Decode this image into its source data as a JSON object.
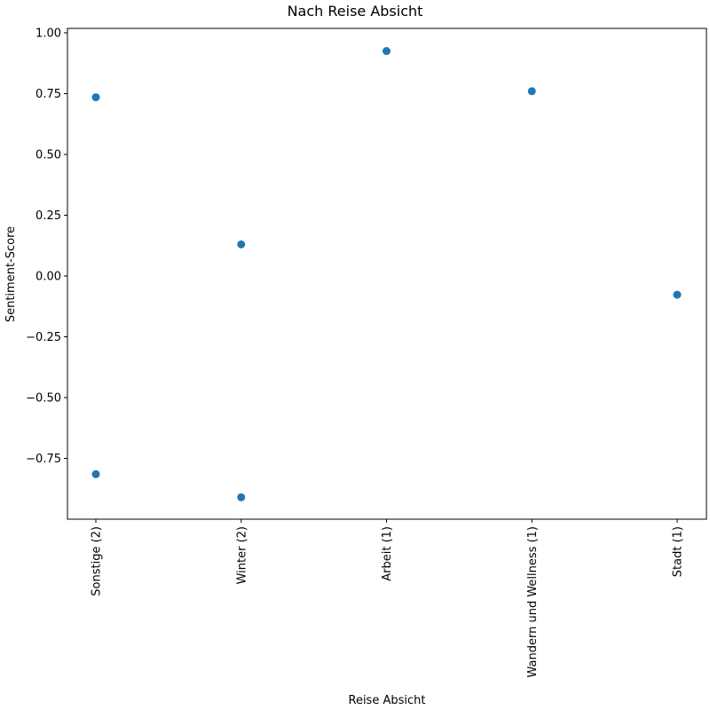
{
  "chart_data": {
    "type": "scatter",
    "title": "Nach Reise Absicht",
    "xlabel": "Reise Absicht",
    "ylabel": "Sentiment-Score",
    "categories": [
      "Sonstige (2)",
      "Winter (2)",
      "Arbeit (1)",
      "Wandern und Wellness (1)",
      "Stadt (1)"
    ],
    "yticks": [
      1.0,
      0.75,
      0.5,
      0.25,
      0.0,
      -0.25,
      -0.5,
      -0.75
    ],
    "ytick_labels": [
      "1.00",
      "0.75",
      "0.50",
      "0.25",
      "0.00",
      "−0.25",
      "−0.50",
      "−0.75"
    ],
    "ylim": [
      -1.0,
      1.1
    ],
    "grid": false,
    "marker_color": "#1f77b4",
    "points": [
      {
        "x": "Sonstige (2)",
        "y": 0.735
      },
      {
        "x": "Sonstige (2)",
        "y": -0.815
      },
      {
        "x": "Winter (2)",
        "y": 0.13
      },
      {
        "x": "Winter (2)",
        "y": -0.91
      },
      {
        "x": "Arbeit (1)",
        "y": 0.925
      },
      {
        "x": "Wandern und Wellness (1)",
        "y": 0.76
      },
      {
        "x": "Stadt (1)",
        "y": -0.077
      }
    ]
  }
}
